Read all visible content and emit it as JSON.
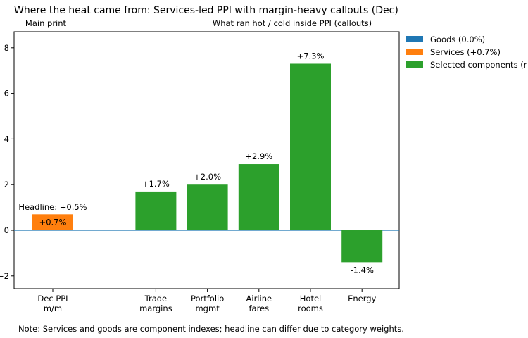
{
  "chart_data": {
    "type": "bar",
    "title": "Where the heat came from: Services-led PPI with margin-heavy callouts (Dec)",
    "panel_labels": {
      "left": "Main print",
      "right": "What ran hot / cold inside PPI (callouts)"
    },
    "headline_label": "Headline: +0.5%",
    "ylim": [
      -2.6,
      8.8
    ],
    "yticks": [
      -2,
      0,
      2,
      4,
      6,
      8
    ],
    "grid": false,
    "zero_line": true,
    "legend_placement": "outside-right-top",
    "series": [
      {
        "name": "Goods (0.0%)",
        "color": "#1f77b4",
        "values": [
          0.0
        ]
      },
      {
        "name": "Services (+0.7%)",
        "color": "#ff7f0e",
        "values": [
          0.7
        ]
      },
      {
        "name": "Selected components (r",
        "color": "#2ca02c",
        "values": [
          1.7,
          2.0,
          2.9,
          7.3,
          -1.4
        ]
      }
    ],
    "bars": [
      {
        "category": [
          "Dec PPI",
          "m/m"
        ],
        "value": 0.7,
        "series": "Services (+0.7%)",
        "label": "+0.7%",
        "label_pos": "inside",
        "slot": 0
      },
      {
        "category": [
          "Trade",
          "margins"
        ],
        "value": 1.7,
        "series": "Selected components (r",
        "label": "+1.7%",
        "label_pos": "above",
        "slot": 2
      },
      {
        "category": [
          "Portfolio",
          "mgmt"
        ],
        "value": 2.0,
        "series": "Selected components (r",
        "label": "+2.0%",
        "label_pos": "above",
        "slot": 3
      },
      {
        "category": [
          "Airline",
          "fares"
        ],
        "value": 2.9,
        "series": "Selected components (r",
        "label": "+2.9%",
        "label_pos": "above",
        "slot": 4
      },
      {
        "category": [
          "Hotel",
          "rooms"
        ],
        "value": 7.3,
        "series": "Selected components (r",
        "label": "+7.3%",
        "label_pos": "above",
        "slot": 5
      },
      {
        "category": [
          "Energy"
        ],
        "value": -1.4,
        "series": "Selected components (r",
        "label": "-1.4%",
        "label_pos": "below",
        "slot": 6
      }
    ],
    "note": "Note: Services and goods are component indexes; headline can differ due to category weights."
  }
}
